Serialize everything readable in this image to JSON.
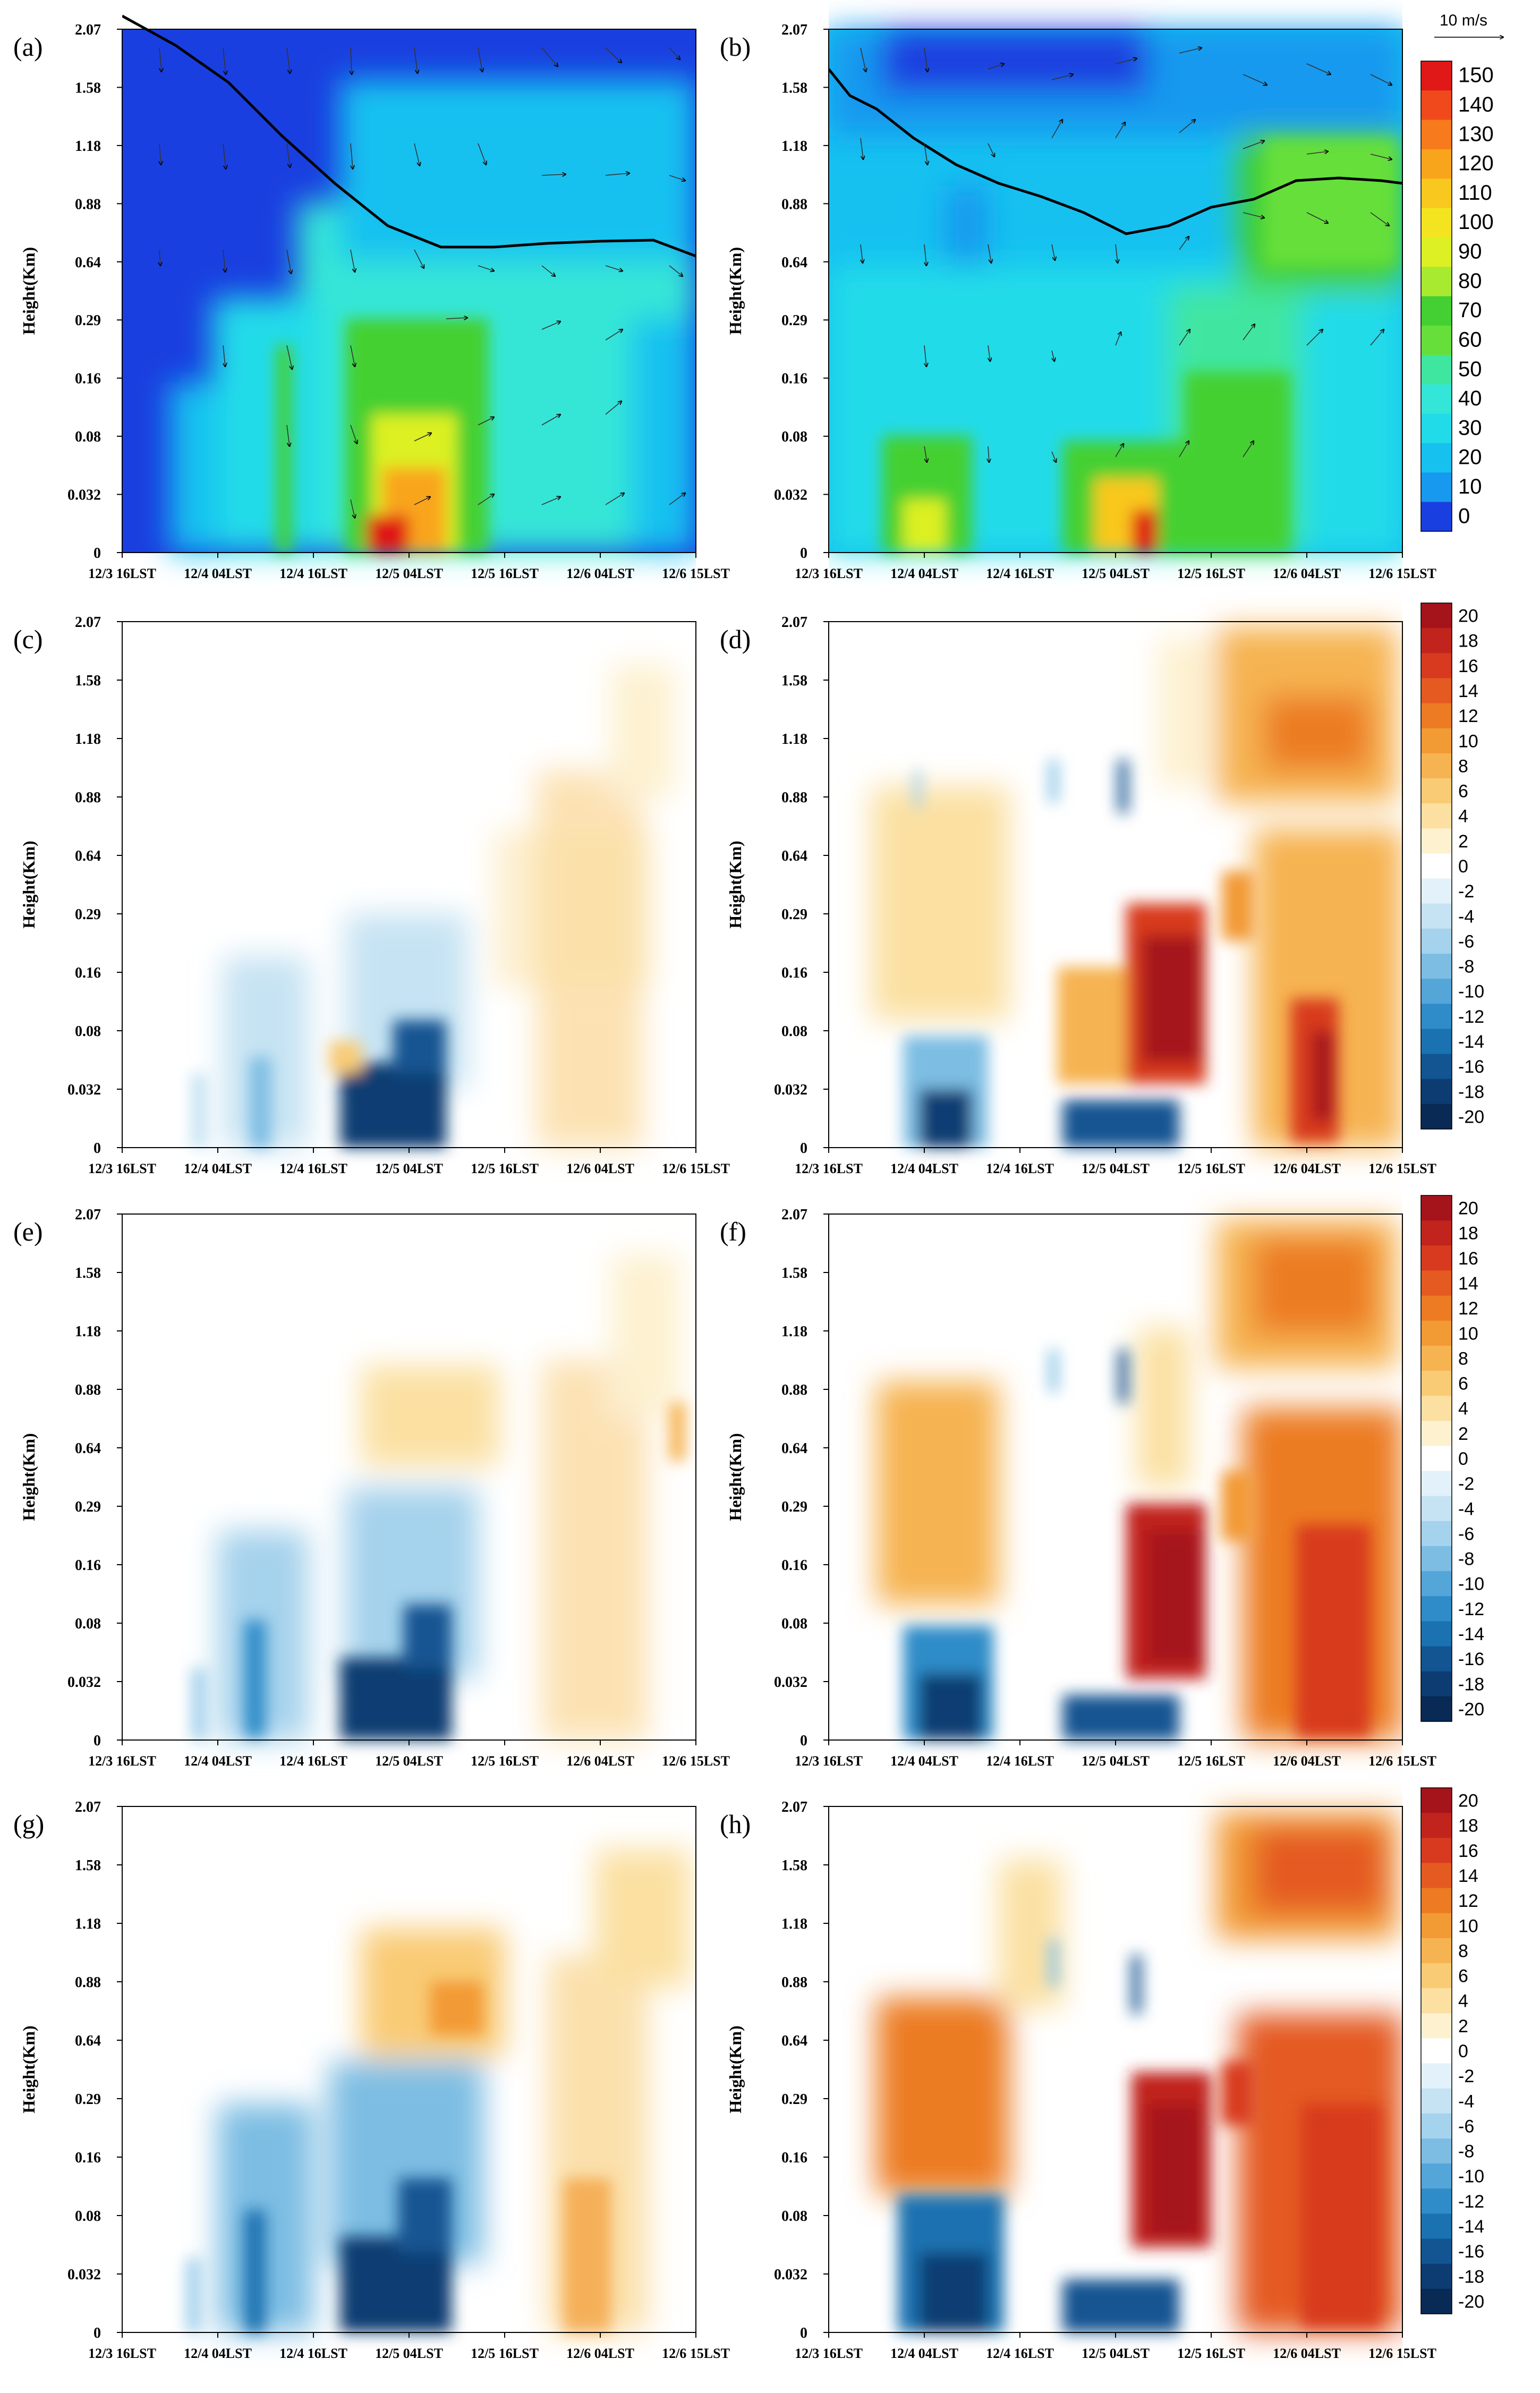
{
  "chart_data": {
    "type": "heatmap",
    "description_ylabel": "Height(Km)",
    "y_ticks": [
      "0",
      "0.032",
      "0.08",
      "0.16",
      "0.29",
      "0.64",
      "0.88",
      "1.18",
      "1.58",
      "2.07"
    ],
    "x_ticks": [
      "12/3 16LST",
      "12/4 04LST",
      "12/4 16LST",
      "12/5 04LST",
      "12/5 16LST",
      "12/6 04LST",
      "12/6 15LST"
    ],
    "reference_vector": "10 m/s",
    "colorbar_concentration": {
      "labels": [
        "150",
        "140",
        "130",
        "120",
        "110",
        "100",
        "90",
        "80",
        "70",
        "60",
        "50",
        "40",
        "30",
        "20",
        "10",
        "0"
      ],
      "colors": [
        "#e01818",
        "#f04a1c",
        "#f77a1c",
        "#f9a51c",
        "#f9c81e",
        "#f4e41f",
        "#dcf023",
        "#a8ea30",
        "#44d032",
        "#66df3a",
        "#3fe6a0",
        "#34e6d7",
        "#22dbe9",
        "#16c1f0",
        "#1699ef",
        "#1a3fe0"
      ]
    },
    "colorbar_difference": {
      "labels": [
        "20",
        "18",
        "16",
        "14",
        "12",
        "10",
        "8",
        "6",
        "4",
        "2",
        "0",
        "-2",
        "-4",
        "-6",
        "-8",
        "-10",
        "-12",
        "-14",
        "-16",
        "-18",
        "-20"
      ],
      "colors": [
        "#a5141b",
        "#c1241d",
        "#d83a1f",
        "#e45a20",
        "#ec7b24",
        "#f29a34",
        "#f6b351",
        "#f9cb74",
        "#fbe0a2",
        "#fdf1d0",
        "#ffffff",
        "#e3f1fa",
        "#c6e3f3",
        "#a5d2ec",
        "#7dbde3",
        "#54a5d8",
        "#2f8cc8",
        "#1a72b0",
        "#125592",
        "#0c3c72",
        "#082a55"
      ]
    },
    "panels": [
      {
        "label": "(a)",
        "kind": "concentration",
        "boundary_layer_height_km": [
          2.07,
          1.7,
          1.2,
          0.85,
          0.7,
          0.74,
          0.75,
          0.7
        ]
      },
      {
        "label": "(b)",
        "kind": "concentration",
        "boundary_layer_height_km": [
          1.65,
          1.3,
          1.0,
          0.82,
          0.8,
          0.9,
          1.0,
          0.98
        ]
      },
      {
        "label": "(c)",
        "kind": "difference"
      },
      {
        "label": "(d)",
        "kind": "difference"
      },
      {
        "label": "(e)",
        "kind": "difference"
      },
      {
        "label": "(f)",
        "kind": "difference"
      },
      {
        "label": "(g)",
        "kind": "difference"
      },
      {
        "label": "(h)",
        "kind": "difference"
      }
    ]
  }
}
